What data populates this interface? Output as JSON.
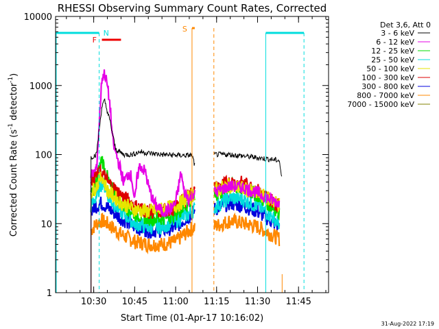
{
  "chart_data": {
    "type": "line",
    "title": "RHESSI Observing Summary Count Rates, Corrected",
    "xlabel": "Start Time (01-Apr-17 10:16:02)",
    "ylabel_main": "Corrected Count Rate (s",
    "ylabel_sup1": "-1",
    "ylabel_mid": " detector",
    "ylabel_sup2": "-1",
    "ylabel_end": ")",
    "y_scale": "log",
    "ylim": [
      1,
      10000
    ],
    "xlim_minutes": [
      "10:16:02",
      "11:56:00"
    ],
    "x_ticks": [
      "10:30",
      "10:45",
      "11:00",
      "11:15",
      "11:30",
      "11:45"
    ],
    "y_ticks": [
      "1",
      "10",
      "100",
      "1000",
      "10000"
    ],
    "legend_title": "Det 3,6, Att 0",
    "legend_position": "top-right",
    "data_gaps": [
      [
        "11:07",
        "11:14"
      ],
      [
        "11:39",
        "11:56"
      ]
    ],
    "series": [
      {
        "name": "3 - 6 keV",
        "color": "#000000",
        "points": [
          [
            "10:29",
            92
          ],
          [
            "10:31",
            100
          ],
          [
            "10:33",
            500
          ],
          [
            "10:34",
            600
          ],
          [
            "10:35",
            420
          ],
          [
            "10:36",
            300
          ],
          [
            "10:38",
            120
          ],
          [
            "10:41",
            100
          ],
          [
            "10:44",
            100
          ],
          [
            "10:47",
            110
          ],
          [
            "10:50",
            105
          ],
          [
            "10:55",
            100
          ],
          [
            "11:00",
            98
          ],
          [
            "11:03",
            97
          ],
          [
            "11:06",
            98
          ],
          [
            "11:07",
            70
          ],
          [
            "11:14",
            100
          ],
          [
            "11:20",
            100
          ],
          [
            "11:25",
            95
          ],
          [
            "11:30",
            90
          ],
          [
            "11:35",
            85
          ],
          [
            "11:38",
            82
          ],
          [
            "11:39",
            40
          ]
        ]
      },
      {
        "name": "6 - 12 keV",
        "color": "#e600e6",
        "points": [
          [
            "10:29",
            50
          ],
          [
            "10:31",
            60
          ],
          [
            "10:33",
            1300
          ],
          [
            "10:34",
            1500
          ],
          [
            "10:35",
            1000
          ],
          [
            "10:36",
            500
          ],
          [
            "10:37",
            150
          ],
          [
            "10:39",
            80
          ],
          [
            "10:41",
            40
          ],
          [
            "10:43",
            55
          ],
          [
            "10:44",
            45
          ],
          [
            "10:45",
            20
          ],
          [
            "10:46",
            50
          ],
          [
            "10:47",
            70
          ],
          [
            "10:49",
            55
          ],
          [
            "10:50",
            35
          ],
          [
            "10:52",
            20
          ],
          [
            "10:55",
            15
          ],
          [
            "10:58",
            16
          ],
          [
            "11:00",
            20
          ],
          [
            "11:02",
            55
          ],
          [
            "11:03",
            30
          ],
          [
            "11:05",
            22
          ],
          [
            "11:07",
            30
          ],
          [
            "11:14",
            28
          ],
          [
            "11:20",
            35
          ],
          [
            "11:25",
            33
          ],
          [
            "11:30",
            28
          ],
          [
            "11:35",
            22
          ],
          [
            "11:38",
            20
          ]
        ]
      },
      {
        "name": "12 - 25 keV",
        "color": "#00dd00",
        "points": [
          [
            "10:29",
            25
          ],
          [
            "10:31",
            40
          ],
          [
            "10:33",
            90
          ],
          [
            "10:34",
            60
          ],
          [
            "10:36",
            35
          ],
          [
            "10:40",
            20
          ],
          [
            "10:45",
            14
          ],
          [
            "10:50",
            12
          ],
          [
            "10:55",
            12
          ],
          [
            "11:00",
            14
          ],
          [
            "11:05",
            20
          ],
          [
            "11:07",
            26
          ],
          [
            "11:14",
            25
          ],
          [
            "11:20",
            35
          ],
          [
            "11:25",
            32
          ],
          [
            "11:30",
            26
          ],
          [
            "11:35",
            18
          ],
          [
            "11:38",
            15
          ]
        ]
      },
      {
        "name": "25 - 50 keV",
        "color": "#00dddd",
        "points": [
          [
            "10:29",
            18
          ],
          [
            "10:31",
            25
          ],
          [
            "10:33",
            40
          ],
          [
            "10:34",
            35
          ],
          [
            "10:36",
            22
          ],
          [
            "10:40",
            15
          ],
          [
            "10:45",
            10
          ],
          [
            "10:50",
            9
          ],
          [
            "10:55",
            9
          ],
          [
            "11:00",
            11
          ],
          [
            "11:05",
            14
          ],
          [
            "11:07",
            16
          ],
          [
            "11:14",
            17
          ],
          [
            "11:20",
            24
          ],
          [
            "11:25",
            22
          ],
          [
            "11:30",
            18
          ],
          [
            "11:35",
            13
          ],
          [
            "11:38",
            10
          ]
        ]
      },
      {
        "name": "50 - 100 keV",
        "color": "#e6e600",
        "points": [
          [
            "10:29",
            28
          ],
          [
            "10:31",
            35
          ],
          [
            "10:33",
            50
          ],
          [
            "10:35",
            30
          ],
          [
            "10:40",
            20
          ],
          [
            "10:45",
            16
          ],
          [
            "10:50",
            15
          ],
          [
            "10:55",
            16
          ],
          [
            "11:00",
            18
          ],
          [
            "11:05",
            24
          ],
          [
            "11:07",
            28
          ],
          [
            "11:14",
            30
          ],
          [
            "11:20",
            36
          ],
          [
            "11:25",
            32
          ],
          [
            "11:30",
            27
          ],
          [
            "11:35",
            22
          ],
          [
            "11:38",
            19
          ]
        ]
      },
      {
        "name": "100 - 300 keV",
        "color": "#dd0000",
        "points": [
          [
            "10:29",
            45
          ],
          [
            "10:31",
            50
          ],
          [
            "10:33",
            55
          ],
          [
            "10:35",
            40
          ],
          [
            "10:40",
            26
          ],
          [
            "10:45",
            18
          ],
          [
            "10:50",
            15
          ],
          [
            "10:55",
            15
          ],
          [
            "11:00",
            17
          ],
          [
            "11:05",
            26
          ],
          [
            "11:07",
            30
          ],
          [
            "11:14",
            32
          ],
          [
            "11:20",
            40
          ],
          [
            "11:25",
            38
          ],
          [
            "11:30",
            30
          ],
          [
            "11:35",
            22
          ],
          [
            "11:38",
            18
          ]
        ]
      },
      {
        "name": "300 - 800 keV",
        "color": "#0000dd",
        "points": [
          [
            "10:29",
            16
          ],
          [
            "10:31",
            18
          ],
          [
            "10:33",
            20
          ],
          [
            "10:35",
            17
          ],
          [
            "10:40",
            12
          ],
          [
            "10:45",
            9
          ],
          [
            "10:50",
            8
          ],
          [
            "10:55",
            8
          ],
          [
            "11:00",
            9
          ],
          [
            "11:05",
            13
          ],
          [
            "11:07",
            15
          ],
          [
            "11:14",
            16
          ],
          [
            "11:20",
            20
          ],
          [
            "11:25",
            18
          ],
          [
            "11:30",
            15
          ],
          [
            "11:35",
            11
          ],
          [
            "11:38",
            9
          ]
        ]
      },
      {
        "name": "800 - 7000 keV",
        "color": "#ff8800",
        "points": [
          [
            "10:29",
            8
          ],
          [
            "10:31",
            10
          ],
          [
            "10:33",
            11
          ],
          [
            "10:35",
            10
          ],
          [
            "10:40",
            7
          ],
          [
            "10:45",
            5.5
          ],
          [
            "10:50",
            5
          ],
          [
            "10:55",
            5
          ],
          [
            "11:00",
            5.5
          ],
          [
            "11:05",
            8
          ],
          [
            "11:07",
            9
          ],
          [
            "11:14",
            9
          ],
          [
            "11:20",
            11
          ],
          [
            "11:25",
            10
          ],
          [
            "11:30",
            9
          ],
          [
            "11:35",
            7
          ],
          [
            "11:38",
            6
          ]
        ]
      },
      {
        "name": "7000 - 15000 keV",
        "color": "#808000",
        "points": []
      }
    ],
    "annotations": [
      {
        "label": "N",
        "color": "#00dddd"
      },
      {
        "label": "F",
        "color": "#ee0000"
      },
      {
        "label": "S",
        "color": "#ff8800"
      }
    ],
    "timestamp": "31-Aug-2022 17:19"
  }
}
